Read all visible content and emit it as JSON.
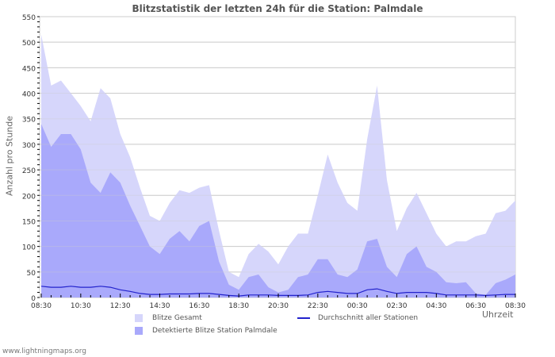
{
  "title": "Blitzstatistik der letzten 24h für die Station: Palmdale",
  "footer": "www.lightningmaps.org",
  "colors": {
    "total": "#d6d6fb",
    "detected": "#a9a9fb",
    "average": "#2222cc",
    "grid": "#cccccc"
  },
  "legend": {
    "total": "Blitze Gesamt",
    "detected": "Detektierte Blitze Station Palmdale",
    "average": "Durchschnitt aller Stationen"
  },
  "chart_data": {
    "type": "area",
    "title": "Blitzstatistik der letzten 24h für die Station: Palmdale",
    "xlabel": "Uhrzeit",
    "ylabel": "Anzahl pro Stunde",
    "ylim": [
      0,
      550
    ],
    "yticks": [
      0,
      50,
      100,
      150,
      200,
      250,
      300,
      350,
      400,
      450,
      500,
      550
    ],
    "xtick_labels": [
      "08:30",
      "10:30",
      "12:30",
      "14:30",
      "16:30",
      "18:30",
      "20:30",
      "22:30",
      "00:30",
      "02:30",
      "04:30",
      "06:30",
      "08:30"
    ],
    "grid": true,
    "legend_position": "bottom",
    "x": [
      "08:30",
      "09:00",
      "09:30",
      "10:00",
      "10:30",
      "11:00",
      "11:30",
      "12:00",
      "12:30",
      "13:00",
      "13:30",
      "14:00",
      "14:30",
      "15:00",
      "15:30",
      "16:00",
      "16:30",
      "17:00",
      "17:30",
      "18:00",
      "18:30",
      "19:00",
      "19:30",
      "20:00",
      "20:30",
      "21:00",
      "21:30",
      "22:00",
      "22:30",
      "23:00",
      "23:30",
      "00:00",
      "00:30",
      "01:00",
      "01:30",
      "02:00",
      "02:30",
      "03:00",
      "03:30",
      "04:00",
      "04:30",
      "05:00",
      "05:30",
      "06:00",
      "06:30",
      "07:00",
      "07:30",
      "08:00",
      "08:30"
    ],
    "series": [
      {
        "name": "Blitze Gesamt",
        "style": "area",
        "values": [
          515,
          415,
          425,
          400,
          375,
          345,
          410,
          390,
          320,
          275,
          215,
          160,
          150,
          185,
          210,
          205,
          215,
          220,
          130,
          50,
          40,
          85,
          105,
          90,
          65,
          100,
          125,
          125,
          200,
          280,
          225,
          185,
          170,
          310,
          415,
          230,
          130,
          175,
          205,
          165,
          125,
          100,
          110,
          110,
          120,
          125,
          165,
          170,
          190
        ]
      },
      {
        "name": "Detektierte Blitze Station Palmdale",
        "style": "area",
        "values": [
          340,
          295,
          320,
          320,
          290,
          225,
          205,
          245,
          225,
          180,
          140,
          100,
          85,
          115,
          130,
          110,
          140,
          150,
          70,
          25,
          15,
          40,
          45,
          20,
          10,
          15,
          40,
          45,
          75,
          75,
          45,
          40,
          55,
          110,
          115,
          60,
          40,
          85,
          100,
          60,
          50,
          30,
          28,
          30,
          8,
          5,
          28,
          35,
          45
        ]
      },
      {
        "name": "Durchschnitt aller Stationen",
        "style": "line",
        "values": [
          22,
          20,
          20,
          22,
          20,
          20,
          22,
          20,
          15,
          12,
          8,
          6,
          6,
          7,
          7,
          7,
          8,
          8,
          6,
          4,
          3,
          5,
          5,
          5,
          4,
          4,
          4,
          5,
          10,
          12,
          10,
          8,
          8,
          15,
          17,
          12,
          8,
          10,
          10,
          10,
          8,
          5,
          5,
          5,
          5,
          4,
          5,
          6,
          6
        ]
      }
    ]
  }
}
